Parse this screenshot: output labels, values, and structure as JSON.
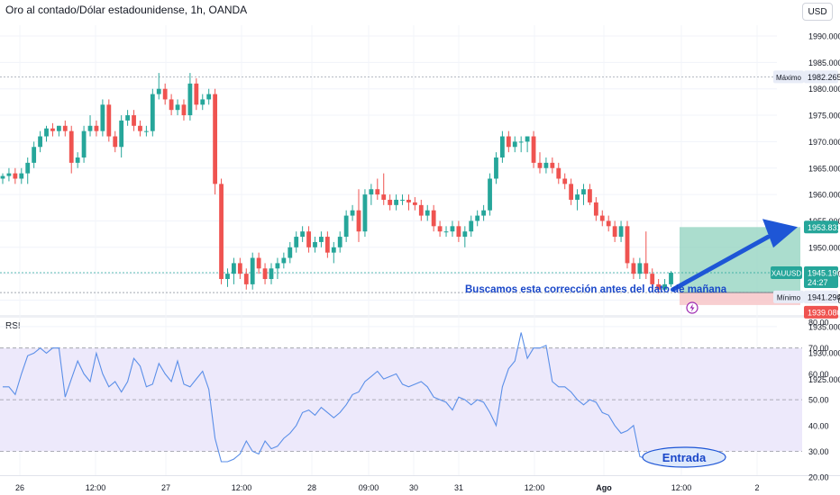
{
  "header": {
    "title": "Oro al contado/Dólar estadounidense, 1h, OANDA",
    "currency_button": "USD"
  },
  "colors": {
    "up": "#26a69a",
    "down": "#ef5350",
    "arrow": "#1e56d6",
    "rsi_line": "#5b8fe8",
    "rsi_band": "#ede9fb",
    "long_profit": "#8fd1bd",
    "long_loss": "#f7c5c8",
    "annotation": "#1947c9"
  },
  "price_axis": {
    "ticks": [
      "1990.000",
      "1985.000",
      "1980.000",
      "1975.000",
      "1970.000",
      "1965.000",
      "1960.000",
      "1955.000",
      "1950.000",
      "1945.000",
      "1940.000",
      "1935.000",
      "1930.000",
      "1925.000"
    ],
    "max_label": "Máximo",
    "max_value": "1982.265",
    "min_label": "Mínimo",
    "min_value": "1941.290",
    "symbol_tag": "XAUUSD",
    "current_price": "1945.190",
    "countdown": "24:27",
    "target_price": "1953.831",
    "entry_price": "1941.434",
    "stop_price": "1939.080"
  },
  "rsi_axis": {
    "label": "RSI",
    "ticks": [
      "80.00",
      "70.00",
      "60.00",
      "50.00",
      "40.00",
      "30.00",
      "20.00"
    ]
  },
  "time_axis": {
    "labels": [
      "26",
      "12:00",
      "27",
      "12:00",
      "28",
      "09:00",
      "30",
      "31",
      "12:00",
      "Ago",
      "12:00",
      "2"
    ]
  },
  "annotations": {
    "note": "Buscamos esta corrección antes del dato de mañana",
    "entry": "Entrada"
  },
  "chart_data": [
    {
      "type": "candlestick",
      "symbol": "XAUUSD",
      "timeframe": "1h",
      "ylim": [
        1920,
        1995
      ],
      "max_marker": 1982.265,
      "min_marker": 1941.29,
      "current_price": 1945.19,
      "position": {
        "type": "long",
        "entry": 1941.434,
        "target": 1953.831,
        "stop": 1939.08
      },
      "ohlc": [
        [
          1963,
          1964,
          1962,
          1963.5
        ],
        [
          1963.5,
          1965,
          1962.5,
          1964
        ],
        [
          1964,
          1965,
          1962,
          1963
        ],
        [
          1963,
          1965,
          1962,
          1964
        ],
        [
          1964,
          1967,
          1962,
          1966
        ],
        [
          1966,
          1970,
          1965,
          1969
        ],
        [
          1969,
          1972,
          1968,
          1971
        ],
        [
          1971,
          1973,
          1970,
          1972.5
        ],
        [
          1972.5,
          1973.5,
          1971,
          1972
        ],
        [
          1972,
          1973,
          1971,
          1973
        ],
        [
          1973,
          1974,
          1971,
          1972
        ],
        [
          1972,
          1973,
          1964,
          1966
        ],
        [
          1966,
          1968,
          1965,
          1967
        ],
        [
          1967,
          1973,
          1966,
          1972
        ],
        [
          1972,
          1975,
          1971,
          1973
        ],
        [
          1973,
          1974,
          1971,
          1972
        ],
        [
          1972,
          1978,
          1971,
          1977
        ],
        [
          1977,
          1978,
          1970,
          1971
        ],
        [
          1971,
          1972,
          1968,
          1969
        ],
        [
          1969,
          1975,
          1967,
          1974
        ],
        [
          1974,
          1976,
          1973,
          1975
        ],
        [
          1975,
          1976,
          1972,
          1973
        ],
        [
          1973,
          1974,
          1971,
          1972
        ],
        [
          1972,
          1973,
          1971,
          1972
        ],
        [
          1972,
          1980,
          1971,
          1979
        ],
        [
          1979,
          1983,
          1978,
          1980
        ],
        [
          1980,
          1981,
          1977,
          1978
        ],
        [
          1978,
          1979,
          1975,
          1976
        ],
        [
          1976,
          1978,
          1975,
          1977
        ],
        [
          1977,
          1978,
          1974,
          1975
        ],
        [
          1975,
          1983,
          1974,
          1981
        ],
        [
          1981,
          1982,
          1976,
          1977
        ],
        [
          1977,
          1979,
          1976,
          1978
        ],
        [
          1978,
          1980,
          1977,
          1979
        ],
        [
          1979,
          1980,
          1960,
          1962
        ],
        [
          1962,
          1963,
          1943,
          1944
        ],
        [
          1944,
          1946,
          1942.5,
          1945
        ],
        [
          1945,
          1948,
          1943,
          1947
        ],
        [
          1947,
          1948,
          1944,
          1945
        ],
        [
          1945,
          1946,
          1942,
          1943
        ],
        [
          1943,
          1949,
          1942,
          1948
        ],
        [
          1948,
          1949,
          1945,
          1946
        ],
        [
          1946,
          1947,
          1943,
          1944
        ],
        [
          1944,
          1947,
          1943,
          1946
        ],
        [
          1946,
          1948,
          1944,
          1947
        ],
        [
          1947,
          1949,
          1946,
          1948
        ],
        [
          1948,
          1951,
          1947,
          1950
        ],
        [
          1950,
          1953,
          1949,
          1952
        ],
        [
          1952,
          1954,
          1951,
          1953
        ],
        [
          1953,
          1954,
          1949,
          1950
        ],
        [
          1950,
          1952,
          1949,
          1951
        ],
        [
          1951,
          1953,
          1950,
          1952
        ],
        [
          1952,
          1953,
          1948,
          1949
        ],
        [
          1949,
          1951,
          1947,
          1950
        ],
        [
          1950,
          1953,
          1949,
          1952
        ],
        [
          1952,
          1957,
          1951,
          1956
        ],
        [
          1956,
          1958,
          1955,
          1957
        ],
        [
          1957,
          1961,
          1951,
          1953
        ],
        [
          1953,
          1961,
          1952,
          1960
        ],
        [
          1960,
          1962,
          1958,
          1961
        ],
        [
          1961,
          1963,
          1959,
          1960
        ],
        [
          1960,
          1964,
          1958,
          1959
        ],
        [
          1959,
          1960,
          1957,
          1958
        ],
        [
          1958,
          1960,
          1957,
          1959
        ],
        [
          1959,
          1960,
          1958,
          1959
        ],
        [
          1959,
          1960,
          1957,
          1958.5
        ],
        [
          1958.5,
          1959.5,
          1957,
          1958
        ],
        [
          1958,
          1959,
          1955,
          1956
        ],
        [
          1956,
          1958,
          1955,
          1957
        ],
        [
          1957,
          1958,
          1953,
          1954
        ],
        [
          1954,
          1955,
          1952,
          1953
        ],
        [
          1953,
          1954,
          1952,
          1953
        ],
        [
          1953,
          1955,
          1952,
          1954
        ],
        [
          1954,
          1955,
          1951,
          1952
        ],
        [
          1952,
          1954,
          1950,
          1953
        ],
        [
          1953,
          1956,
          1952,
          1955
        ],
        [
          1955,
          1957,
          1954,
          1956
        ],
        [
          1956,
          1958,
          1955,
          1957
        ],
        [
          1957,
          1964,
          1956,
          1963
        ],
        [
          1963,
          1968,
          1962,
          1967
        ],
        [
          1967,
          1972,
          1966,
          1971
        ],
        [
          1971,
          1972,
          1968,
          1969
        ],
        [
          1969,
          1971,
          1968,
          1970
        ],
        [
          1970,
          1971,
          1968,
          1970
        ],
        [
          1970,
          1971,
          1968,
          1971
        ],
        [
          1971,
          1972,
          1965,
          1966
        ],
        [
          1966,
          1968,
          1964,
          1965
        ],
        [
          1965,
          1967,
          1964,
          1966
        ],
        [
          1966,
          1967,
          1964,
          1965
        ],
        [
          1965,
          1966,
          1962,
          1963
        ],
        [
          1963,
          1964,
          1961,
          1962
        ],
        [
          1962,
          1963,
          1958,
          1959
        ],
        [
          1959,
          1961,
          1957,
          1960
        ],
        [
          1960,
          1962,
          1958,
          1961
        ],
        [
          1961,
          1962,
          1958,
          1958.5
        ],
        [
          1958.5,
          1959.5,
          1955,
          1956
        ],
        [
          1956,
          1957,
          1954,
          1955
        ],
        [
          1955,
          1956,
          1953,
          1954
        ],
        [
          1954,
          1955,
          1951,
          1952
        ],
        [
          1952,
          1955,
          1951,
          1954
        ],
        [
          1954,
          1955,
          1946,
          1947
        ],
        [
          1947,
          1948,
          1944,
          1945
        ],
        [
          1945,
          1948,
          1944,
          1947
        ],
        [
          1947,
          1953,
          1944,
          1945
        ],
        [
          1945,
          1946,
          1942,
          1943
        ],
        [
          1943,
          1944,
          1941.3,
          1942
        ],
        [
          1942,
          1944,
          1941.5,
          1943
        ],
        [
          1943,
          1945.5,
          1942.5,
          1945.19
        ]
      ]
    },
    {
      "type": "line",
      "name": "RSI",
      "ylim": [
        20,
        80
      ],
      "levels": [
        70,
        50,
        30
      ],
      "values": [
        55,
        55,
        52,
        60,
        67,
        68,
        70,
        68,
        70,
        70,
        51,
        58,
        65,
        60,
        57,
        68,
        60,
        55,
        57,
        53,
        57,
        66,
        63,
        55,
        56,
        64,
        60,
        57,
        65,
        56,
        55,
        58,
        61,
        54,
        35,
        26,
        26,
        27,
        29,
        34,
        30,
        29,
        34,
        31,
        32,
        35,
        37,
        40,
        45,
        46,
        44,
        47,
        45,
        43,
        45,
        48,
        52,
        53,
        57,
        59,
        61,
        58,
        59,
        60,
        56,
        55,
        56,
        57,
        55,
        51,
        50,
        49,
        46,
        51,
        50,
        48,
        50,
        49,
        45,
        40,
        55,
        62,
        65,
        76,
        66,
        70,
        70,
        71,
        57,
        55,
        55,
        53,
        50,
        48,
        50,
        49,
        45,
        44,
        40,
        37,
        38,
        40,
        28,
        27,
        29,
        27,
        28,
        30,
        31
      ]
    }
  ]
}
